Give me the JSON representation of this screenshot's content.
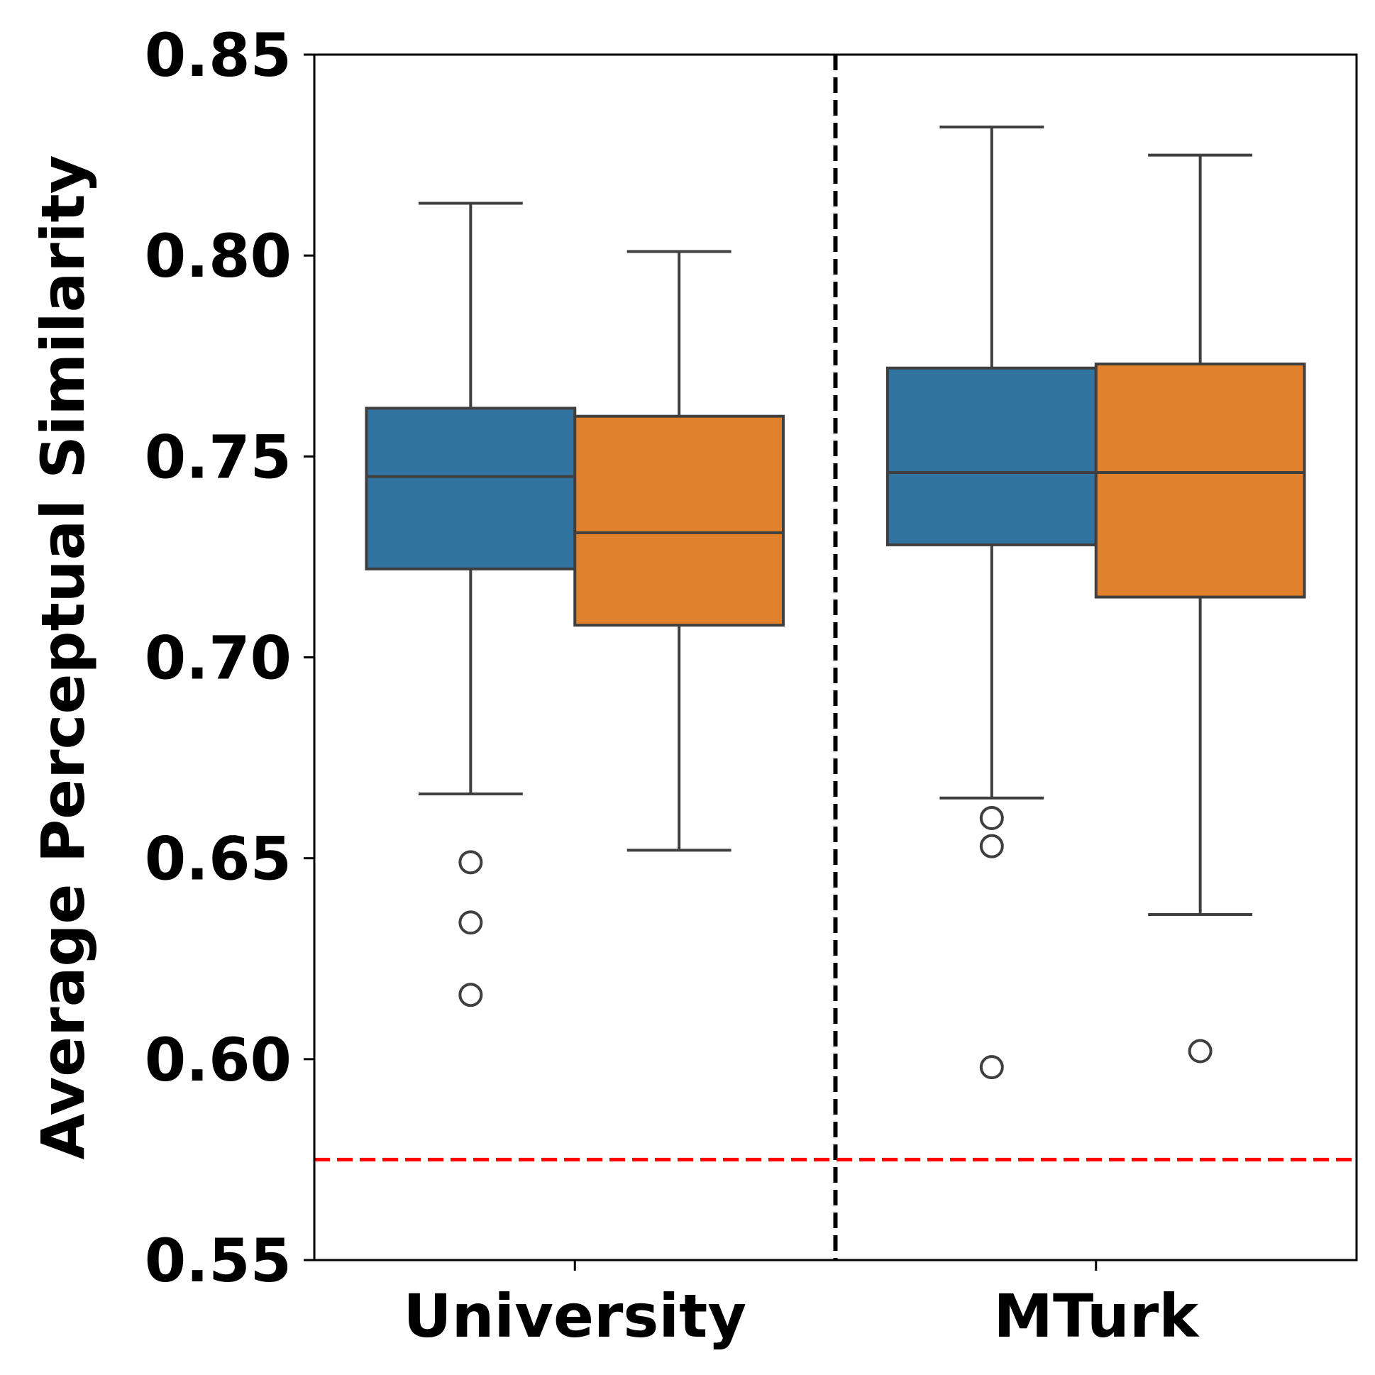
{
  "chart_data": {
    "type": "box",
    "title": "",
    "ylabel": "Average Perceptual Similarity",
    "xlabel": "",
    "ylim": [
      0.55,
      0.85
    ],
    "yticks": [
      "0.55",
      "0.60",
      "0.65",
      "0.70",
      "0.75",
      "0.80",
      "0.85"
    ],
    "categories": [
      "University",
      "MTurk"
    ],
    "grid": false,
    "legend": "none",
    "separator_at_boundary": true,
    "reference_line": {
      "y": 0.575,
      "color": "#ff0000",
      "style": "dashed"
    },
    "series": [
      {
        "color": "#3274a1",
        "boxes": [
          {
            "category": "University",
            "whisker_low": 0.666,
            "q1": 0.722,
            "median": 0.745,
            "q3": 0.762,
            "whisker_high": 0.813,
            "outliers": [
              0.649,
              0.634,
              0.616
            ]
          },
          {
            "category": "MTurk",
            "whisker_low": 0.665,
            "q1": 0.728,
            "median": 0.746,
            "q3": 0.772,
            "whisker_high": 0.832,
            "outliers": [
              0.66,
              0.653,
              0.598
            ]
          }
        ]
      },
      {
        "color": "#e1812c",
        "boxes": [
          {
            "category": "University",
            "whisker_low": 0.652,
            "q1": 0.708,
            "median": 0.731,
            "q3": 0.76,
            "whisker_high": 0.801,
            "outliers": []
          },
          {
            "category": "MTurk",
            "whisker_low": 0.636,
            "q1": 0.715,
            "median": 0.746,
            "q3": 0.773,
            "whisker_high": 0.825,
            "outliers": [
              0.602
            ]
          }
        ]
      }
    ]
  }
}
